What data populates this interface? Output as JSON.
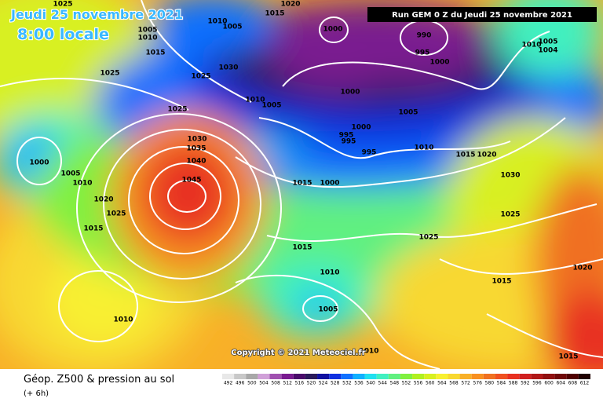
{
  "header": {
    "date": "Jeudi 25 novembre 2021",
    "time": "8:00 locale",
    "run": "Run GEM 0 Z du Jeudi 25 novembre 2021"
  },
  "copyright": "Copyright © 2021 Meteociel.fr",
  "footer": {
    "title": "Géop. Z500 & pression au sol",
    "lead": "(+ 6h)"
  },
  "legend": {
    "values": [
      "492",
      "496",
      "500",
      "504",
      "508",
      "512",
      "516",
      "520",
      "524",
      "528",
      "532",
      "536",
      "540",
      "544",
      "548",
      "552",
      "556",
      "560",
      "564",
      "568",
      "572",
      "576",
      "580",
      "584",
      "588",
      "592",
      "596",
      "600",
      "604",
      "608",
      "612"
    ],
    "colors": [
      "#e8e8e8",
      "#c8c8c8",
      "#a8a8a8",
      "#d0a0d8",
      "#a050b0",
      "#7a1a90",
      "#4a0a6a",
      "#2a1a5a",
      "#1010a0",
      "#1030e0",
      "#1070ff",
      "#10b0ff",
      "#20e0f0",
      "#40f0c0",
      "#60f080",
      "#80f040",
      "#b0f020",
      "#d8f020",
      "#f8f030",
      "#f8d830",
      "#f8b028",
      "#f89020",
      "#f07020",
      "#f05020",
      "#e83020",
      "#d02020",
      "#b01818",
      "#901010",
      "#700808",
      "#500000",
      "#200000"
    ]
  },
  "isobars": [
    "1025",
    "1015",
    "1020",
    "1010",
    "1005",
    "1005",
    "1010",
    "1015",
    "1000",
    "990",
    "995",
    "1000",
    "1010",
    "1005",
    "1004",
    "1025",
    "1025",
    "1030",
    "1010",
    "1005",
    "1000",
    "1005",
    "1025",
    "1000",
    "995",
    "995",
    "995",
    "1010",
    "1015",
    "1020",
    "1030",
    "1000",
    "1005",
    "1010",
    "1030",
    "1035",
    "1040",
    "1045",
    "1020",
    "1025",
    "1015",
    "1015",
    "1000",
    "1025",
    "1025",
    "1015",
    "1010",
    "1015",
    "1020",
    "1005",
    "1010",
    "1010",
    "1015"
  ]
}
